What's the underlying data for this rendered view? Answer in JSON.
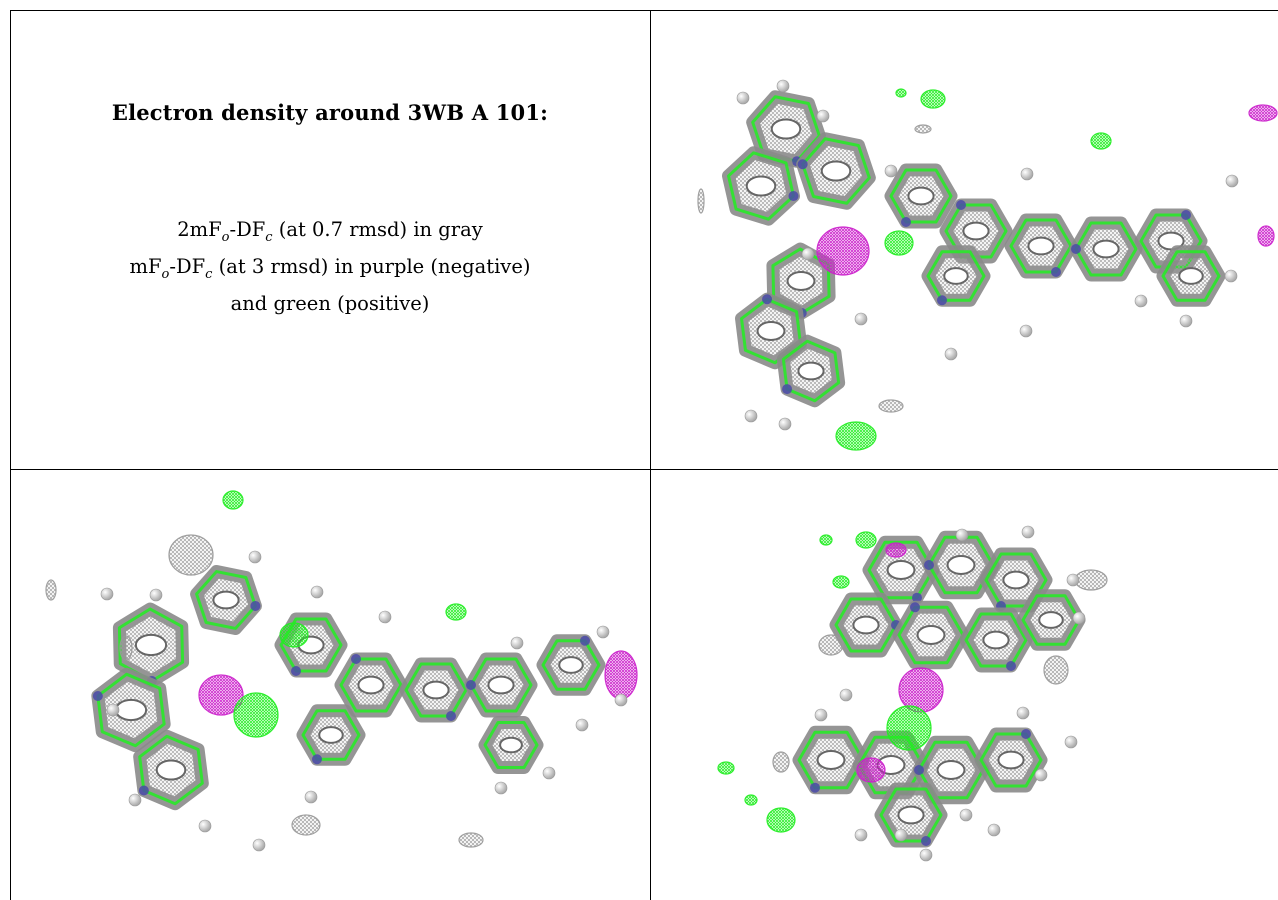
{
  "caption": {
    "title": "Electron density around 3WB A 101:",
    "line1": {
      "prefix": "2mF",
      "sub1": "o",
      "mid": "-DF",
      "sub2": "c",
      "suffix": " (at 0.7 rmsd) in gray"
    },
    "line2": {
      "prefix": "mF",
      "sub1": "o",
      "mid": "-DF",
      "sub2": "c",
      "suffix": " (at 3 rmsd) in purple (negative)"
    },
    "line3": "and green (positive)"
  },
  "colors": {
    "gray_mesh": "#9a9a9a",
    "negative": "#cc22cc",
    "positive": "#22ee22",
    "nitrogen": "#4a4aa8",
    "hydrogen": "#dddddd"
  },
  "panels": [
    {
      "name": "view-top-right"
    },
    {
      "name": "view-bottom-left"
    },
    {
      "name": "view-bottom-right"
    }
  ]
}
